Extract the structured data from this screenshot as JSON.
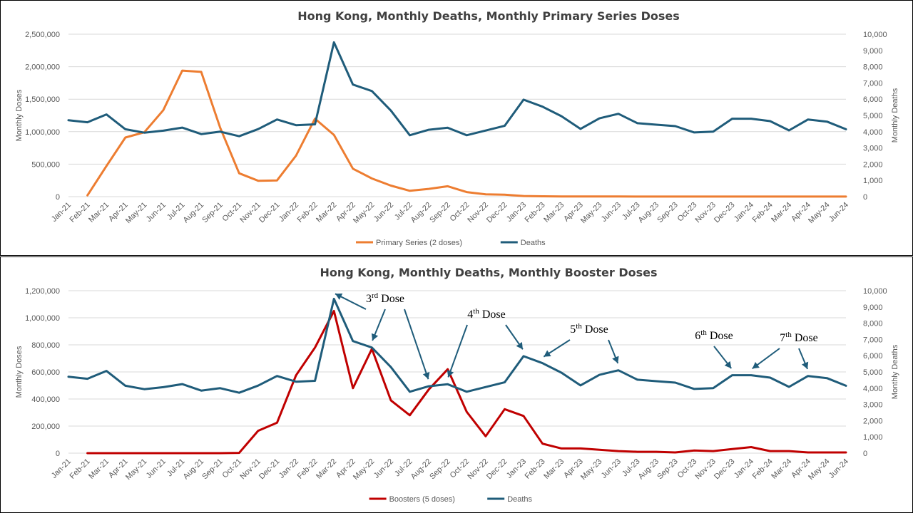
{
  "months": [
    "Jan-21",
    "Feb-21",
    "Mar-21",
    "Apr-21",
    "May-21",
    "Jun-21",
    "Jul-21",
    "Aug-21",
    "Sep-21",
    "Oct-21",
    "Nov-21",
    "Dec-21",
    "Jan-22",
    "Feb-22",
    "Mar-22",
    "Apr-22",
    "May-22",
    "Jun-22",
    "Jul-22",
    "Aug-22",
    "Sep-22",
    "Oct-22",
    "Nov-22",
    "Dec-22",
    "Jan-23",
    "Feb-23",
    "Mar-23",
    "Apr-23",
    "May-23",
    "Jun-23",
    "Jul-23",
    "Aug-23",
    "Sep-23",
    "Oct-23",
    "Nov-23",
    "Dec-23",
    "Jan-24",
    "Feb-24",
    "Mar-24",
    "Apr-24",
    "May-24",
    "Jun-24"
  ],
  "chart_data": [
    {
      "type": "line",
      "title": "Hong Kong, Monthly Deaths, Monthly Primary Series Doses",
      "ylabel": "Monthly Doses",
      "y2label": "Monthly Deaths",
      "ylim": [
        0,
        2500000
      ],
      "y2lim": [
        0,
        10000
      ],
      "yticks": [
        "0",
        "500,000",
        "1,000,000",
        "1,500,000",
        "2,000,000",
        "2,500,000"
      ],
      "y2ticks": [
        "0",
        "1,000",
        "2,000",
        "3,000",
        "4,000",
        "5,000",
        "6,000",
        "7,000",
        "8,000",
        "9,000",
        "10,000"
      ],
      "grid": true,
      "legend": "bottom",
      "series": [
        {
          "name": "Primary Series (2 doses)",
          "axis": "left",
          "color": "#ED7D31",
          "start": 1,
          "values": [
            20000,
            470000,
            910000,
            990000,
            1330000,
            1940000,
            1920000,
            1060000,
            360000,
            245000,
            250000,
            630000,
            1200000,
            950000,
            430000,
            280000,
            170000,
            90000,
            120000,
            160000,
            70000,
            35000,
            30000,
            10000,
            5000,
            3000,
            2000,
            2000,
            2000,
            1000,
            1000,
            1000,
            1000,
            1000,
            1000,
            1000,
            1000,
            1000,
            1000,
            1000,
            1000
          ]
        },
        {
          "name": "Deaths",
          "axis": "right",
          "color": "#1F5C7A",
          "start": 0,
          "values": [
            4700,
            4580,
            5060,
            4150,
            3940,
            4060,
            4250,
            3850,
            4000,
            3720,
            4160,
            4750,
            4400,
            4450,
            9500,
            6900,
            6500,
            5300,
            3780,
            4120,
            4240,
            3780,
            4070,
            4360,
            5970,
            5540,
            4950,
            4170,
            4820,
            5100,
            4520,
            4430,
            4340,
            3950,
            4000,
            4800,
            4800,
            4650,
            4080,
            4750,
            4620,
            4150
          ]
        }
      ]
    },
    {
      "type": "line",
      "title": "Hong Kong, Monthly Deaths, Monthly Booster Doses",
      "ylabel": "Monthly Doses",
      "y2label": "Monthly Deaths",
      "ylim": [
        0,
        1200000
      ],
      "y2lim": [
        0,
        10000
      ],
      "yticks": [
        "0",
        "200,000",
        "400,000",
        "600,000",
        "800,000",
        "1,000,000",
        "1,200,000"
      ],
      "y2ticks": [
        "0",
        "1,000",
        "2,000",
        "3,000",
        "4,000",
        "5,000",
        "6,000",
        "7,000",
        "8,000",
        "9,000",
        "10,000"
      ],
      "grid": true,
      "legend": "bottom",
      "series": [
        {
          "name": "Boosters (5 doses)",
          "axis": "left",
          "color": "#C00000",
          "start": 1,
          "values": [
            0,
            0,
            0,
            0,
            0,
            0,
            0,
            0,
            2000,
            165000,
            225000,
            575000,
            780000,
            1050000,
            480000,
            770000,
            390000,
            280000,
            470000,
            620000,
            305000,
            125000,
            325000,
            275000,
            70000,
            35000,
            35000,
            25000,
            15000,
            10000,
            10000,
            5000,
            20000,
            15000,
            30000,
            45000,
            15000,
            15000,
            5000,
            5000,
            5000
          ]
        },
        {
          "name": "Deaths",
          "axis": "right",
          "color": "#1F5C7A",
          "start": 0,
          "values": [
            4700,
            4580,
            5060,
            4150,
            3940,
            4060,
            4250,
            3850,
            4000,
            3720,
            4160,
            4750,
            4400,
            4450,
            9500,
            6900,
            6500,
            5300,
            3780,
            4120,
            4240,
            3780,
            4070,
            4360,
            5970,
            5540,
            4950,
            4170,
            4820,
            5100,
            4520,
            4430,
            4340,
            3950,
            4000,
            4800,
            4800,
            4650,
            4080,
            4750,
            4620,
            4150
          ]
        }
      ],
      "annotations": [
        {
          "label": "3",
          "sup": "rd",
          "suffix": " Dose",
          "arrows_to": [
            "Mar-22",
            "May-22",
            "Aug-22"
          ]
        },
        {
          "label": "4",
          "sup": "th",
          "suffix": " Dose",
          "arrows_to": [
            "Sep-22",
            "Jan-23"
          ]
        },
        {
          "label": "5",
          "sup": "th",
          "suffix": " Dose",
          "arrows_to": [
            "Feb-23",
            "Jun-23"
          ]
        },
        {
          "label": "6",
          "sup": "th",
          "suffix": " Dose",
          "arrows_to": [
            "Dec-23"
          ]
        },
        {
          "label": "7",
          "sup": "th",
          "suffix": " Dose",
          "arrows_to": [
            "Jan-24",
            "Apr-24"
          ]
        }
      ]
    }
  ]
}
